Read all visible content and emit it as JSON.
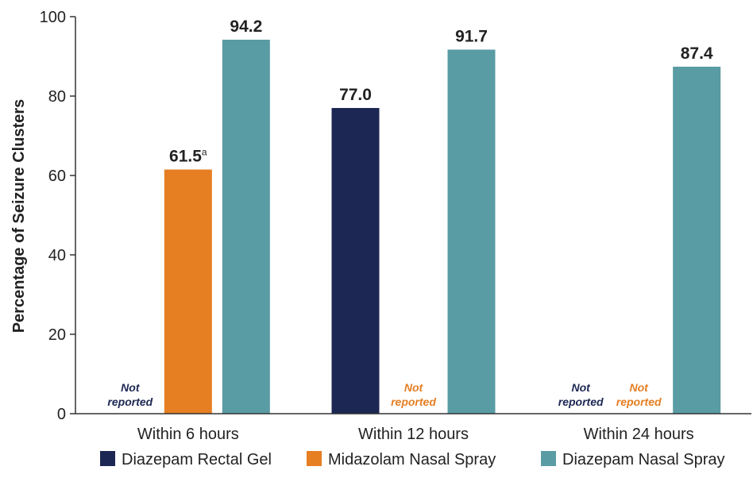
{
  "chart_data": {
    "type": "bar",
    "title": "",
    "ylabel": "Percentage of Seizure Clusters",
    "xlabel": "",
    "ylim": [
      0,
      100
    ],
    "yticks": [
      0,
      20,
      40,
      60,
      80,
      100
    ],
    "categories": [
      "Within 6 hours",
      "Within 12 hours",
      "Within 24 hours"
    ],
    "series": [
      {
        "name": "Diazepam Rectal Gel",
        "color": "#1c2753",
        "values": [
          null,
          77.0,
          null
        ],
        "labels": [
          "",
          "77.0",
          ""
        ]
      },
      {
        "name": "Midazolam Nasal Spray",
        "color": "#e67e22",
        "values": [
          61.5,
          null,
          null
        ],
        "labels": [
          "61.5",
          "",
          ""
        ],
        "label_superscripts": [
          "a",
          "",
          ""
        ]
      },
      {
        "name": "Diazepam Nasal Spray",
        "color": "#5a9ca4",
        "values": [
          94.2,
          91.7,
          87.4
        ],
        "labels": [
          "94.2",
          "91.7",
          "87.4"
        ]
      }
    ],
    "not_reported_label": [
      "Not",
      "reported"
    ],
    "legend_position": "bottom"
  }
}
